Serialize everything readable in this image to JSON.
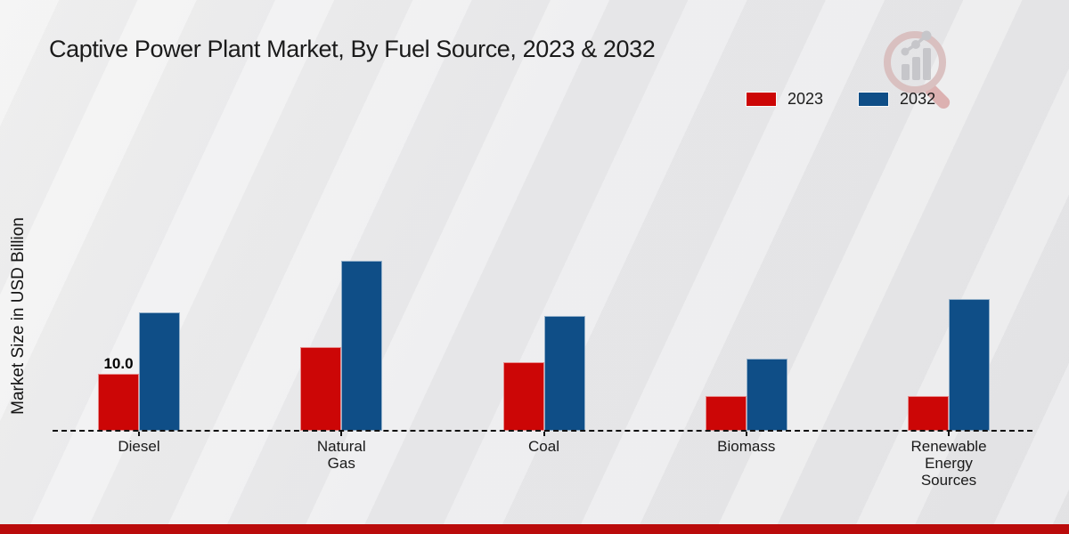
{
  "header": {
    "title": "Captive Power Plant Market, By Fuel Source, 2023 & 2032"
  },
  "y_axis_label": "Market Size in USD Billion",
  "legend": {
    "items": [
      {
        "label": "2023",
        "color": "#cc0606"
      },
      {
        "label": "2032",
        "color": "#0f4e87"
      }
    ]
  },
  "footer": {
    "band_color": "#ba0b0b"
  },
  "logo": {
    "name": "market-research-magnifier-growth-logo",
    "ring_color": "#d9bfbf",
    "handle_color": "#dcaeae",
    "bars_color": "#c5c5c9"
  },
  "chart_data": {
    "type": "bar",
    "title": "Captive Power Plant Market, By Fuel Source, 2023 & 2032",
    "xlabel": "",
    "ylabel": "Market Size in USD Billion",
    "categories": [
      "Diesel",
      "Natural Gas",
      "Coal",
      "Biomass",
      "Renewable Energy Sources"
    ],
    "category_label_lines": [
      [
        "Diesel"
      ],
      [
        "Natural",
        "Gas"
      ],
      [
        "Coal"
      ],
      [
        "Biomass"
      ],
      [
        "Renewable",
        "Energy",
        "Sources"
      ]
    ],
    "series": [
      {
        "name": "2023",
        "color": "#cc0606",
        "values": [
          10.0,
          14.8,
          12.1,
          6.1,
          6.1
        ]
      },
      {
        "name": "2032",
        "color": "#0f4e87",
        "values": [
          20.9,
          30.1,
          20.3,
          12.7,
          23.2
        ]
      }
    ],
    "bar_labels": [
      {
        "series": 0,
        "category": 0,
        "text": "10.0"
      }
    ],
    "ylim": [
      0,
      32
    ],
    "grid": false,
    "baseline_style": "dashed",
    "legend_position": "top-right"
  }
}
